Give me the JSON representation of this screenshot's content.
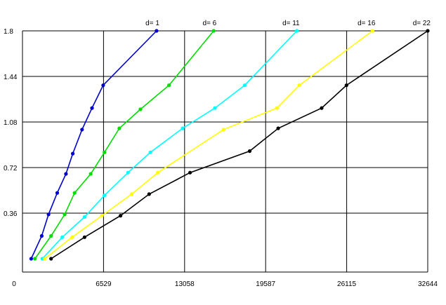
{
  "chart_data": {
    "type": "line",
    "title": "",
    "xlabel": "",
    "ylabel": "",
    "xlim": [
      0,
      32644
    ],
    "ylim": [
      0,
      1.8
    ],
    "x_ticks": [
      "0",
      "6529",
      "13058",
      "19587",
      "26115",
      "32644"
    ],
    "y_ticks": [
      "1.8",
      "1.44",
      "1.08",
      "0.72",
      "0.36"
    ],
    "grid": true,
    "legend": "series labels printed at the end of each line",
    "series": [
      {
        "name": "d= 1",
        "color": "#0000cc",
        "x": [
          700,
          1550,
          2100,
          2800,
          3500,
          4050,
          4800,
          5600,
          6500,
          10800
        ],
        "y": [
          0.0,
          0.18,
          0.35,
          0.52,
          0.67,
          0.83,
          1.02,
          1.19,
          1.37,
          1.8
        ]
      },
      {
        "name": "d= 6",
        "color": "#00dd00",
        "x": [
          1000,
          2300,
          3400,
          4200,
          5500,
          6600,
          7800,
          9500,
          11800,
          15400
        ],
        "y": [
          0.0,
          0.18,
          0.35,
          0.52,
          0.67,
          0.84,
          1.03,
          1.18,
          1.37,
          1.8
        ]
      },
      {
        "name": "d= 11",
        "color": "#00ffff",
        "x": [
          1600,
          3200,
          5000,
          6600,
          8500,
          10300,
          12900,
          15500,
          17900,
          22100
        ],
        "y": [
          0.0,
          0.17,
          0.33,
          0.5,
          0.68,
          0.84,
          1.03,
          1.19,
          1.37,
          1.8
        ]
      },
      {
        "name": "d= 16",
        "color": "#ffff00",
        "x": [
          1800,
          4000,
          6400,
          8800,
          10900,
          16200,
          20500,
          22300,
          28200
        ],
        "y": [
          0.0,
          0.17,
          0.34,
          0.51,
          0.68,
          1.02,
          1.19,
          1.37,
          1.8
        ]
      },
      {
        "name": "d= 22",
        "color": "#000000",
        "x": [
          2300,
          5000,
          7900,
          10200,
          13500,
          18300,
          20600,
          24100,
          26100,
          32644
        ],
        "y": [
          0.0,
          0.17,
          0.34,
          0.51,
          0.68,
          0.85,
          1.03,
          1.19,
          1.37,
          1.8
        ]
      }
    ]
  }
}
